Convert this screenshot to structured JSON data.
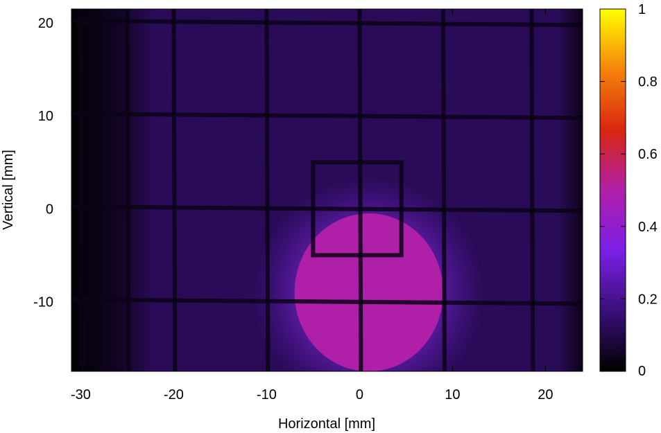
{
  "chart_data": {
    "type": "heatmap",
    "title": "",
    "xlabel": "Horizontal [mm]",
    "ylabel": "Vertical [mm]",
    "xlim": [
      -31,
      24
    ],
    "ylim": [
      -17.5,
      21.5
    ],
    "xticks": [
      -30,
      -20,
      -10,
      0,
      10,
      20
    ],
    "xtick_labels": [
      "-30",
      "-20",
      "-10",
      "0",
      "10",
      "20"
    ],
    "yticks": [
      -10,
      0,
      10,
      20
    ],
    "ytick_labels": [
      "-10",
      "0",
      "10",
      "20"
    ],
    "colorbar": {
      "range": [
        0,
        1
      ],
      "ticks": [
        0,
        0.2,
        0.4,
        0.6,
        0.8,
        1
      ],
      "tick_labels": [
        "0",
        "0.2",
        "0.4",
        "0.6",
        "0.8",
        "1"
      ],
      "colormap": [
        "#000000",
        "#3a0f7a",
        "#7b1fe6",
        "#b01fa8",
        "#d9260f",
        "#f5840a",
        "#ffff00"
      ]
    },
    "background_intensity": 0.12,
    "beam_spot": {
      "center_x": 1.0,
      "center_y": -9.0,
      "radius_x": 8.0,
      "radius_y": 8.5,
      "peak_intensity": 0.5
    },
    "grid_wires": {
      "vertical_x": [
        -30,
        -25,
        -20,
        -10,
        0,
        9,
        18.5
      ],
      "horizontal_y": [
        20,
        10,
        0,
        -10
      ]
    },
    "inner_frame": {
      "x_min": -5,
      "x_max": 4.5,
      "y_min": -5,
      "y_max": 5
    }
  }
}
